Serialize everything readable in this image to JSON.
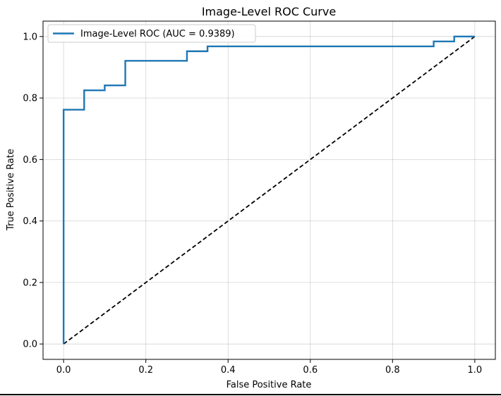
{
  "chart_data": {
    "type": "line",
    "title": "Image-Level ROC Curve",
    "xlabel": "False Positive Rate",
    "ylabel": "True Positive Rate",
    "xlim": [
      -0.05,
      1.05
    ],
    "ylim": [
      -0.05,
      1.05
    ],
    "xticks": [
      "0.0",
      "0.2",
      "0.4",
      "0.6",
      "0.8",
      "1.0"
    ],
    "yticks": [
      "0.0",
      "0.2",
      "0.4",
      "0.6",
      "0.8",
      "1.0"
    ],
    "grid": true,
    "legend_position": "upper-left",
    "series": [
      {
        "name": "Image-Level ROC (AUC = 0.9389)",
        "color": "#1f77b4",
        "style": "solid",
        "x": [
          0,
          0,
          0.05,
          0.05,
          0.1,
          0.1,
          0.15,
          0.15,
          0.3,
          0.3,
          0.35,
          0.35,
          0.9,
          0.9,
          0.95,
          0.95,
          1.0
        ],
        "y": [
          0,
          0.762,
          0.762,
          0.825,
          0.825,
          0.841,
          0.841,
          0.921,
          0.921,
          0.952,
          0.952,
          0.968,
          0.968,
          0.984,
          0.984,
          1.0,
          1.0
        ]
      },
      {
        "color": "#000000",
        "style": "dashed",
        "x": [
          0,
          1
        ],
        "y": [
          0,
          1
        ]
      }
    ]
  }
}
